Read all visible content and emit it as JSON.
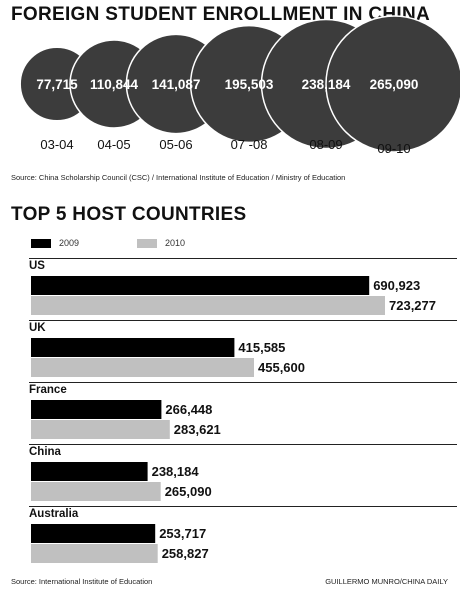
{
  "enrollment": {
    "title": "FOREIGN STUDENT ENROLLMENT IN CHINA",
    "source": "Source: China Scholarship Council (CSC) / International Institute of Education / Ministry of Education",
    "circle_color": "#3c3c3c",
    "label_color": "#ffffff"
  },
  "host": {
    "title": "TOP 5 HOST COUNTRIES",
    "source": "Source: International Institute of Education",
    "credit": "GUILLERMO MUNRO/CHINA DAILY",
    "legend": [
      {
        "label": "2009",
        "color": "#000000"
      },
      {
        "label": "2010",
        "color": "#c0c0c0"
      }
    ]
  },
  "chart_data": [
    {
      "type": "bubble",
      "title": "FOREIGN STUDENT ENROLLMENT IN CHINA",
      "categories": [
        "03-04",
        "04-05",
        "05-06",
        "07 -08",
        "08-09",
        "09-10"
      ],
      "values": [
        77715,
        110844,
        141087,
        195503,
        238184,
        265090
      ],
      "value_labels": [
        "77,715",
        "110,844",
        "141,087",
        "195,503",
        "238,184",
        "265,090"
      ]
    },
    {
      "type": "bar",
      "orientation": "horizontal",
      "title": "TOP 5 HOST COUNTRIES",
      "categories": [
        "US",
        "UK",
        "France",
        "China",
        "Australia"
      ],
      "series": [
        {
          "name": "2009",
          "values": [
            690923,
            415585,
            266448,
            238184,
            253717
          ],
          "labels": [
            "690,923",
            "415,585",
            "266,448",
            "238,184",
            "253,717"
          ]
        },
        {
          "name": "2010",
          "values": [
            723277,
            455600,
            283621,
            265090,
            258827
          ],
          "labels": [
            "723,277",
            "455,600",
            "283,621",
            "265,090",
            "258,827"
          ]
        }
      ]
    }
  ]
}
